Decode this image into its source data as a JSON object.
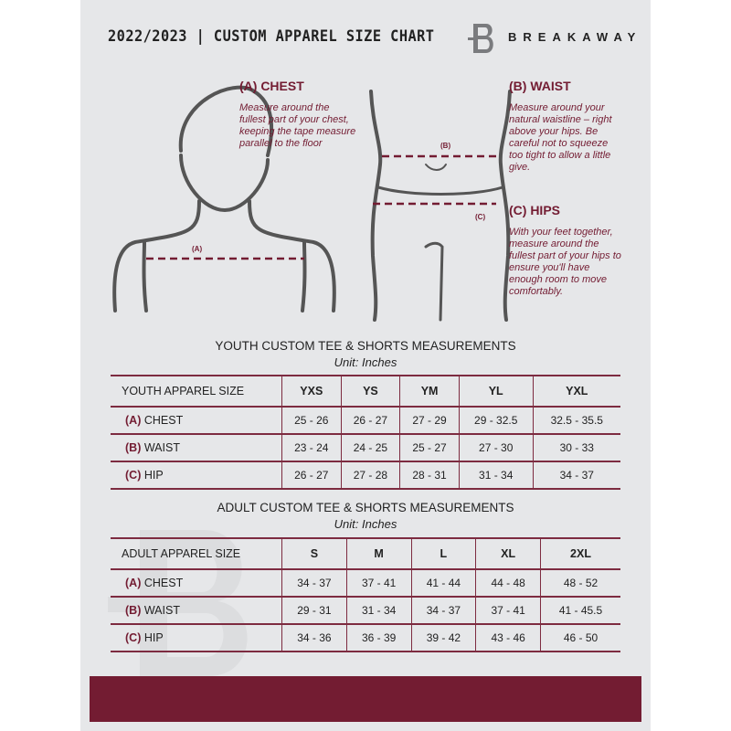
{
  "header": {
    "title": "2022/2023  |  CUSTOM APPAREL SIZE CHART",
    "brand": "BREAKAWAY"
  },
  "guide": {
    "chest": {
      "title": "(A) CHEST",
      "description": "Measure around the fullest part of your chest, keeping the tape measure parallel to the floor",
      "tag": "(A)"
    },
    "waist": {
      "title": "(B) WAIST",
      "description": "Measure around your natural waistline – right above your hips. Be careful not to squeeze too tight to allow a little give.",
      "tag": "(B)"
    },
    "hips": {
      "title": "(C) HIPS",
      "description": "With your feet together, measure around the fullest part of your hips to ensure you'll have enough room to move comfortably.",
      "tag": "(C)"
    }
  },
  "youth": {
    "title": "YOUTH CUSTOM TEE & SHORTS MEASUREMENTS",
    "unit": "Unit: Inches",
    "header_label": "YOUTH APPAREL SIZE",
    "sizes": [
      "YXS",
      "YS",
      "YM",
      "YL",
      "YXL"
    ],
    "rows": [
      {
        "letter": "(A)",
        "label": "CHEST",
        "values": [
          "25 - 26",
          "26 - 27",
          "27 - 29",
          "29 - 32.5",
          "32.5 - 35.5"
        ]
      },
      {
        "letter": "(B)",
        "label": "WAIST",
        "values": [
          "23 - 24",
          "24 - 25",
          "25 - 27",
          "27 - 30",
          "30 - 33"
        ]
      },
      {
        "letter": "(C)",
        "label": "HIP",
        "values": [
          "26 - 27",
          "27 - 28",
          "28 - 31",
          "31 - 34",
          "34 - 37"
        ]
      }
    ]
  },
  "adult": {
    "title": "ADULT CUSTOM TEE & SHORTS MEASUREMENTS",
    "unit": "Unit: Inches",
    "header_label": "ADULT APPAREL SIZE",
    "sizes": [
      "S",
      "M",
      "L",
      "XL",
      "2XL"
    ],
    "rows": [
      {
        "letter": "(A)",
        "label": "CHEST",
        "values": [
          "34 - 37",
          "37 - 41",
          "41 - 44",
          "44 - 48",
          "48 - 52"
        ]
      },
      {
        "letter": "(B)",
        "label": "WAIST",
        "values": [
          "29 - 31",
          "31 - 34",
          "34 - 37",
          "37 - 41",
          "41 - 45.5"
        ]
      },
      {
        "letter": "(C)",
        "label": "HIP",
        "values": [
          "34 - 36",
          "36 - 39",
          "39 - 42",
          "43 - 46",
          "46 - 50"
        ]
      }
    ]
  },
  "colors": {
    "accent": "#731c32",
    "background": "#e6e7e9"
  }
}
